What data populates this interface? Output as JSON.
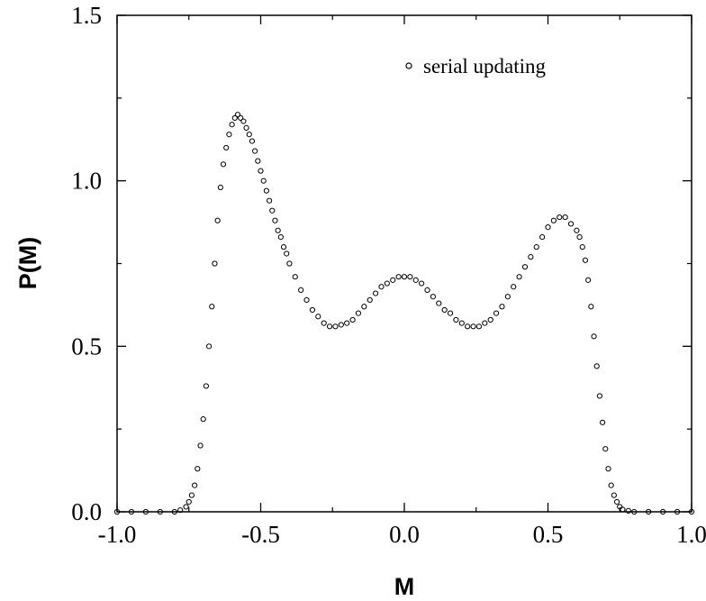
{
  "chart_data": {
    "type": "scatter",
    "xlabel": "M",
    "ylabel": "P(M)",
    "xlim": [
      -1.0,
      1.0
    ],
    "ylim": [
      0.0,
      1.5
    ],
    "x_ticks": [
      "-1.0",
      "-0.5",
      "0.0",
      "0.5",
      "1.0"
    ],
    "y_ticks": [
      "0.0",
      "0.5",
      "1.0",
      "1.5"
    ],
    "grid": false,
    "legend_position": "top-right",
    "marker": "open-circle",
    "series": [
      {
        "name": "serial updating",
        "x": [
          -1.0,
          -0.95,
          -0.9,
          -0.85,
          -0.8,
          -0.78,
          -0.76,
          -0.75,
          -0.74,
          -0.73,
          -0.72,
          -0.71,
          -0.7,
          -0.69,
          -0.68,
          -0.67,
          -0.66,
          -0.65,
          -0.64,
          -0.63,
          -0.62,
          -0.61,
          -0.6,
          -0.59,
          -0.58,
          -0.57,
          -0.56,
          -0.55,
          -0.54,
          -0.53,
          -0.52,
          -0.51,
          -0.5,
          -0.49,
          -0.48,
          -0.47,
          -0.46,
          -0.45,
          -0.44,
          -0.43,
          -0.42,
          -0.41,
          -0.4,
          -0.38,
          -0.36,
          -0.34,
          -0.32,
          -0.3,
          -0.28,
          -0.26,
          -0.24,
          -0.22,
          -0.2,
          -0.18,
          -0.16,
          -0.14,
          -0.12,
          -0.1,
          -0.08,
          -0.06,
          -0.04,
          -0.02,
          0.0,
          0.02,
          0.04,
          0.06,
          0.08,
          0.1,
          0.12,
          0.14,
          0.16,
          0.18,
          0.2,
          0.22,
          0.24,
          0.26,
          0.28,
          0.3,
          0.32,
          0.34,
          0.36,
          0.38,
          0.4,
          0.42,
          0.44,
          0.46,
          0.48,
          0.5,
          0.52,
          0.54,
          0.56,
          0.58,
          0.6,
          0.61,
          0.62,
          0.63,
          0.64,
          0.65,
          0.66,
          0.67,
          0.68,
          0.69,
          0.7,
          0.71,
          0.72,
          0.73,
          0.74,
          0.75,
          0.76,
          0.78,
          0.8,
          0.85,
          0.9,
          0.95,
          1.0
        ],
        "values": [
          0.0,
          0.0,
          0.0,
          0.0,
          0.0,
          0.005,
          0.015,
          0.03,
          0.05,
          0.08,
          0.13,
          0.2,
          0.28,
          0.38,
          0.5,
          0.62,
          0.75,
          0.88,
          0.98,
          1.05,
          1.1,
          1.14,
          1.17,
          1.19,
          1.2,
          1.19,
          1.18,
          1.16,
          1.14,
          1.12,
          1.09,
          1.06,
          1.03,
          1.0,
          0.97,
          0.94,
          0.91,
          0.88,
          0.85,
          0.83,
          0.8,
          0.78,
          0.75,
          0.71,
          0.67,
          0.64,
          0.61,
          0.59,
          0.57,
          0.56,
          0.56,
          0.565,
          0.57,
          0.58,
          0.6,
          0.62,
          0.64,
          0.66,
          0.68,
          0.69,
          0.7,
          0.71,
          0.71,
          0.71,
          0.7,
          0.69,
          0.67,
          0.65,
          0.63,
          0.61,
          0.6,
          0.58,
          0.57,
          0.56,
          0.56,
          0.56,
          0.57,
          0.58,
          0.6,
          0.62,
          0.65,
          0.68,
          0.71,
          0.74,
          0.77,
          0.8,
          0.83,
          0.86,
          0.88,
          0.89,
          0.89,
          0.87,
          0.85,
          0.83,
          0.8,
          0.76,
          0.7,
          0.62,
          0.53,
          0.44,
          0.35,
          0.27,
          0.19,
          0.13,
          0.08,
          0.05,
          0.03,
          0.015,
          0.007,
          0.003,
          0.0,
          0.0,
          0.0,
          0.0,
          0.0
        ]
      }
    ]
  }
}
